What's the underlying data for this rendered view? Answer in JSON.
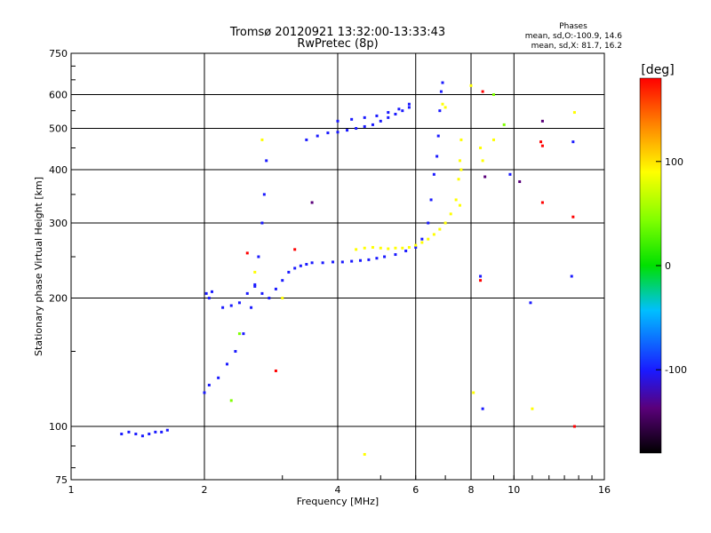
{
  "chart_data": {
    "type": "scatter",
    "title": "Tromsø 20120921 13:32:00-13:33:43",
    "subtitle": "RwPretec (8p)",
    "xlabel": "Frequency [MHz]",
    "ylabel": "Stationary phase Virtual Height [km]",
    "x_scale": "log",
    "y_scale": "log",
    "xlim": [
      1,
      16
    ],
    "ylim": [
      75,
      750
    ],
    "x_ticks": [
      1,
      2,
      4,
      6,
      8,
      10,
      16
    ],
    "y_ticks": [
      75,
      100,
      200,
      300,
      400,
      500,
      600,
      750
    ],
    "x_gridlines": [
      2,
      4,
      6,
      8,
      10
    ],
    "y_gridlines": [
      100,
      200,
      300,
      400,
      500,
      600
    ],
    "grid": true,
    "stats": {
      "heading": "Phases",
      "line_o": "mean, sd,O:-100.9, 14.6",
      "line_x": "mean, sd,X:  81.7, 16.2"
    },
    "colorbar": {
      "label": "[deg]",
      "range": [
        -180,
        180
      ],
      "ticks": [
        {
          "value": 100,
          "label": "100"
        },
        {
          "value": 0,
          "label": "0"
        },
        {
          "value": -100,
          "label": "-100"
        }
      ]
    },
    "series": [
      {
        "phase_deg": -105,
        "points": [
          [
            1.3,
            96
          ],
          [
            1.35,
            97
          ],
          [
            1.4,
            96
          ],
          [
            1.45,
            95
          ],
          [
            1.5,
            96
          ],
          [
            1.55,
            97
          ],
          [
            1.6,
            97
          ],
          [
            1.65,
            98
          ],
          [
            2.02,
            205
          ],
          [
            2.05,
            200
          ],
          [
            2.08,
            207
          ],
          [
            2.2,
            190
          ],
          [
            2.3,
            192
          ],
          [
            2.4,
            195
          ],
          [
            2.5,
            205
          ],
          [
            2.6,
            213
          ],
          [
            2.7,
            205
          ],
          [
            2.8,
            200
          ],
          [
            2.9,
            210
          ],
          [
            3.0,
            220
          ],
          [
            3.1,
            230
          ],
          [
            3.2,
            235
          ],
          [
            3.3,
            238
          ],
          [
            3.4,
            240
          ],
          [
            3.5,
            242
          ],
          [
            3.7,
            242
          ],
          [
            3.9,
            243
          ],
          [
            4.1,
            243
          ],
          [
            4.3,
            244
          ],
          [
            4.5,
            245
          ],
          [
            4.7,
            246
          ],
          [
            4.9,
            248
          ],
          [
            5.1,
            250
          ],
          [
            5.4,
            253
          ],
          [
            5.7,
            258
          ],
          [
            6.0,
            263
          ],
          [
            6.2,
            275
          ],
          [
            6.4,
            300
          ],
          [
            6.5,
            340
          ],
          [
            6.6,
            390
          ],
          [
            6.7,
            430
          ],
          [
            6.75,
            480
          ],
          [
            6.8,
            550
          ],
          [
            6.85,
            610
          ],
          [
            6.9,
            640
          ],
          [
            3.4,
            470
          ],
          [
            3.6,
            480
          ],
          [
            3.8,
            488
          ],
          [
            4.0,
            490
          ],
          [
            4.2,
            495
          ],
          [
            4.4,
            500
          ],
          [
            4.6,
            505
          ],
          [
            4.8,
            510
          ],
          [
            5.0,
            520
          ],
          [
            5.2,
            530
          ],
          [
            5.4,
            540
          ],
          [
            5.6,
            550
          ],
          [
            5.8,
            560
          ],
          [
            4.0,
            520
          ],
          [
            4.3,
            525
          ],
          [
            4.6,
            530
          ],
          [
            4.9,
            535
          ],
          [
            5.2,
            545
          ],
          [
            5.5,
            555
          ],
          [
            5.8,
            570
          ],
          [
            2.0,
            120
          ],
          [
            2.05,
            125
          ],
          [
            2.15,
            130
          ],
          [
            2.25,
            140
          ],
          [
            2.35,
            150
          ],
          [
            2.45,
            165
          ],
          [
            2.55,
            190
          ],
          [
            2.6,
            215
          ],
          [
            2.65,
            250
          ],
          [
            2.7,
            300
          ],
          [
            2.73,
            350
          ],
          [
            2.76,
            420
          ],
          [
            8.4,
            225
          ],
          [
            8.5,
            110
          ],
          [
            10.9,
            195
          ],
          [
            13.5,
            225
          ],
          [
            13.6,
            465
          ],
          [
            9.8,
            390
          ]
        ]
      },
      {
        "phase_deg": 80,
        "points": [
          [
            4.4,
            260
          ],
          [
            4.6,
            262
          ],
          [
            4.8,
            263
          ],
          [
            5.0,
            262
          ],
          [
            5.2,
            261
          ],
          [
            5.4,
            262
          ],
          [
            5.6,
            262
          ],
          [
            5.8,
            263
          ],
          [
            6.0,
            266
          ],
          [
            6.2,
            270
          ],
          [
            6.4,
            275
          ],
          [
            6.6,
            282
          ],
          [
            6.8,
            290
          ],
          [
            7.0,
            300
          ],
          [
            7.2,
            315
          ],
          [
            7.4,
            340
          ],
          [
            7.5,
            380
          ],
          [
            7.55,
            420
          ],
          [
            7.6,
            470
          ],
          [
            6.9,
            570
          ],
          [
            7.0,
            560
          ],
          [
            7.6,
            400
          ],
          [
            7.55,
            330
          ],
          [
            8.1,
            120
          ],
          [
            2.7,
            470
          ],
          [
            2.6,
            230
          ],
          [
            4.6,
            86
          ],
          [
            9.0,
            470
          ],
          [
            11.0,
            110
          ],
          [
            13.7,
            545
          ],
          [
            8.0,
            630
          ],
          [
            8.4,
            450
          ],
          [
            8.5,
            420
          ],
          [
            3.0,
            200
          ]
        ]
      },
      {
        "phase_deg": 160,
        "points": [
          [
            2.5,
            255
          ],
          [
            3.2,
            260
          ],
          [
            2.9,
            135
          ],
          [
            8.5,
            610
          ],
          [
            11.6,
            335
          ],
          [
            11.6,
            455
          ],
          [
            11.5,
            465
          ],
          [
            13.6,
            310
          ],
          [
            13.7,
            100
          ],
          [
            8.4,
            220
          ]
        ]
      },
      {
        "phase_deg": 10,
        "points": [
          [
            2.3,
            115
          ],
          [
            9.0,
            600
          ],
          [
            9.5,
            510
          ],
          [
            2.4,
            165
          ]
        ]
      },
      {
        "phase_deg": -160,
        "points": [
          [
            11.6,
            520
          ],
          [
            10.3,
            375
          ],
          [
            8.6,
            385
          ],
          [
            3.5,
            335
          ]
        ]
      }
    ]
  }
}
